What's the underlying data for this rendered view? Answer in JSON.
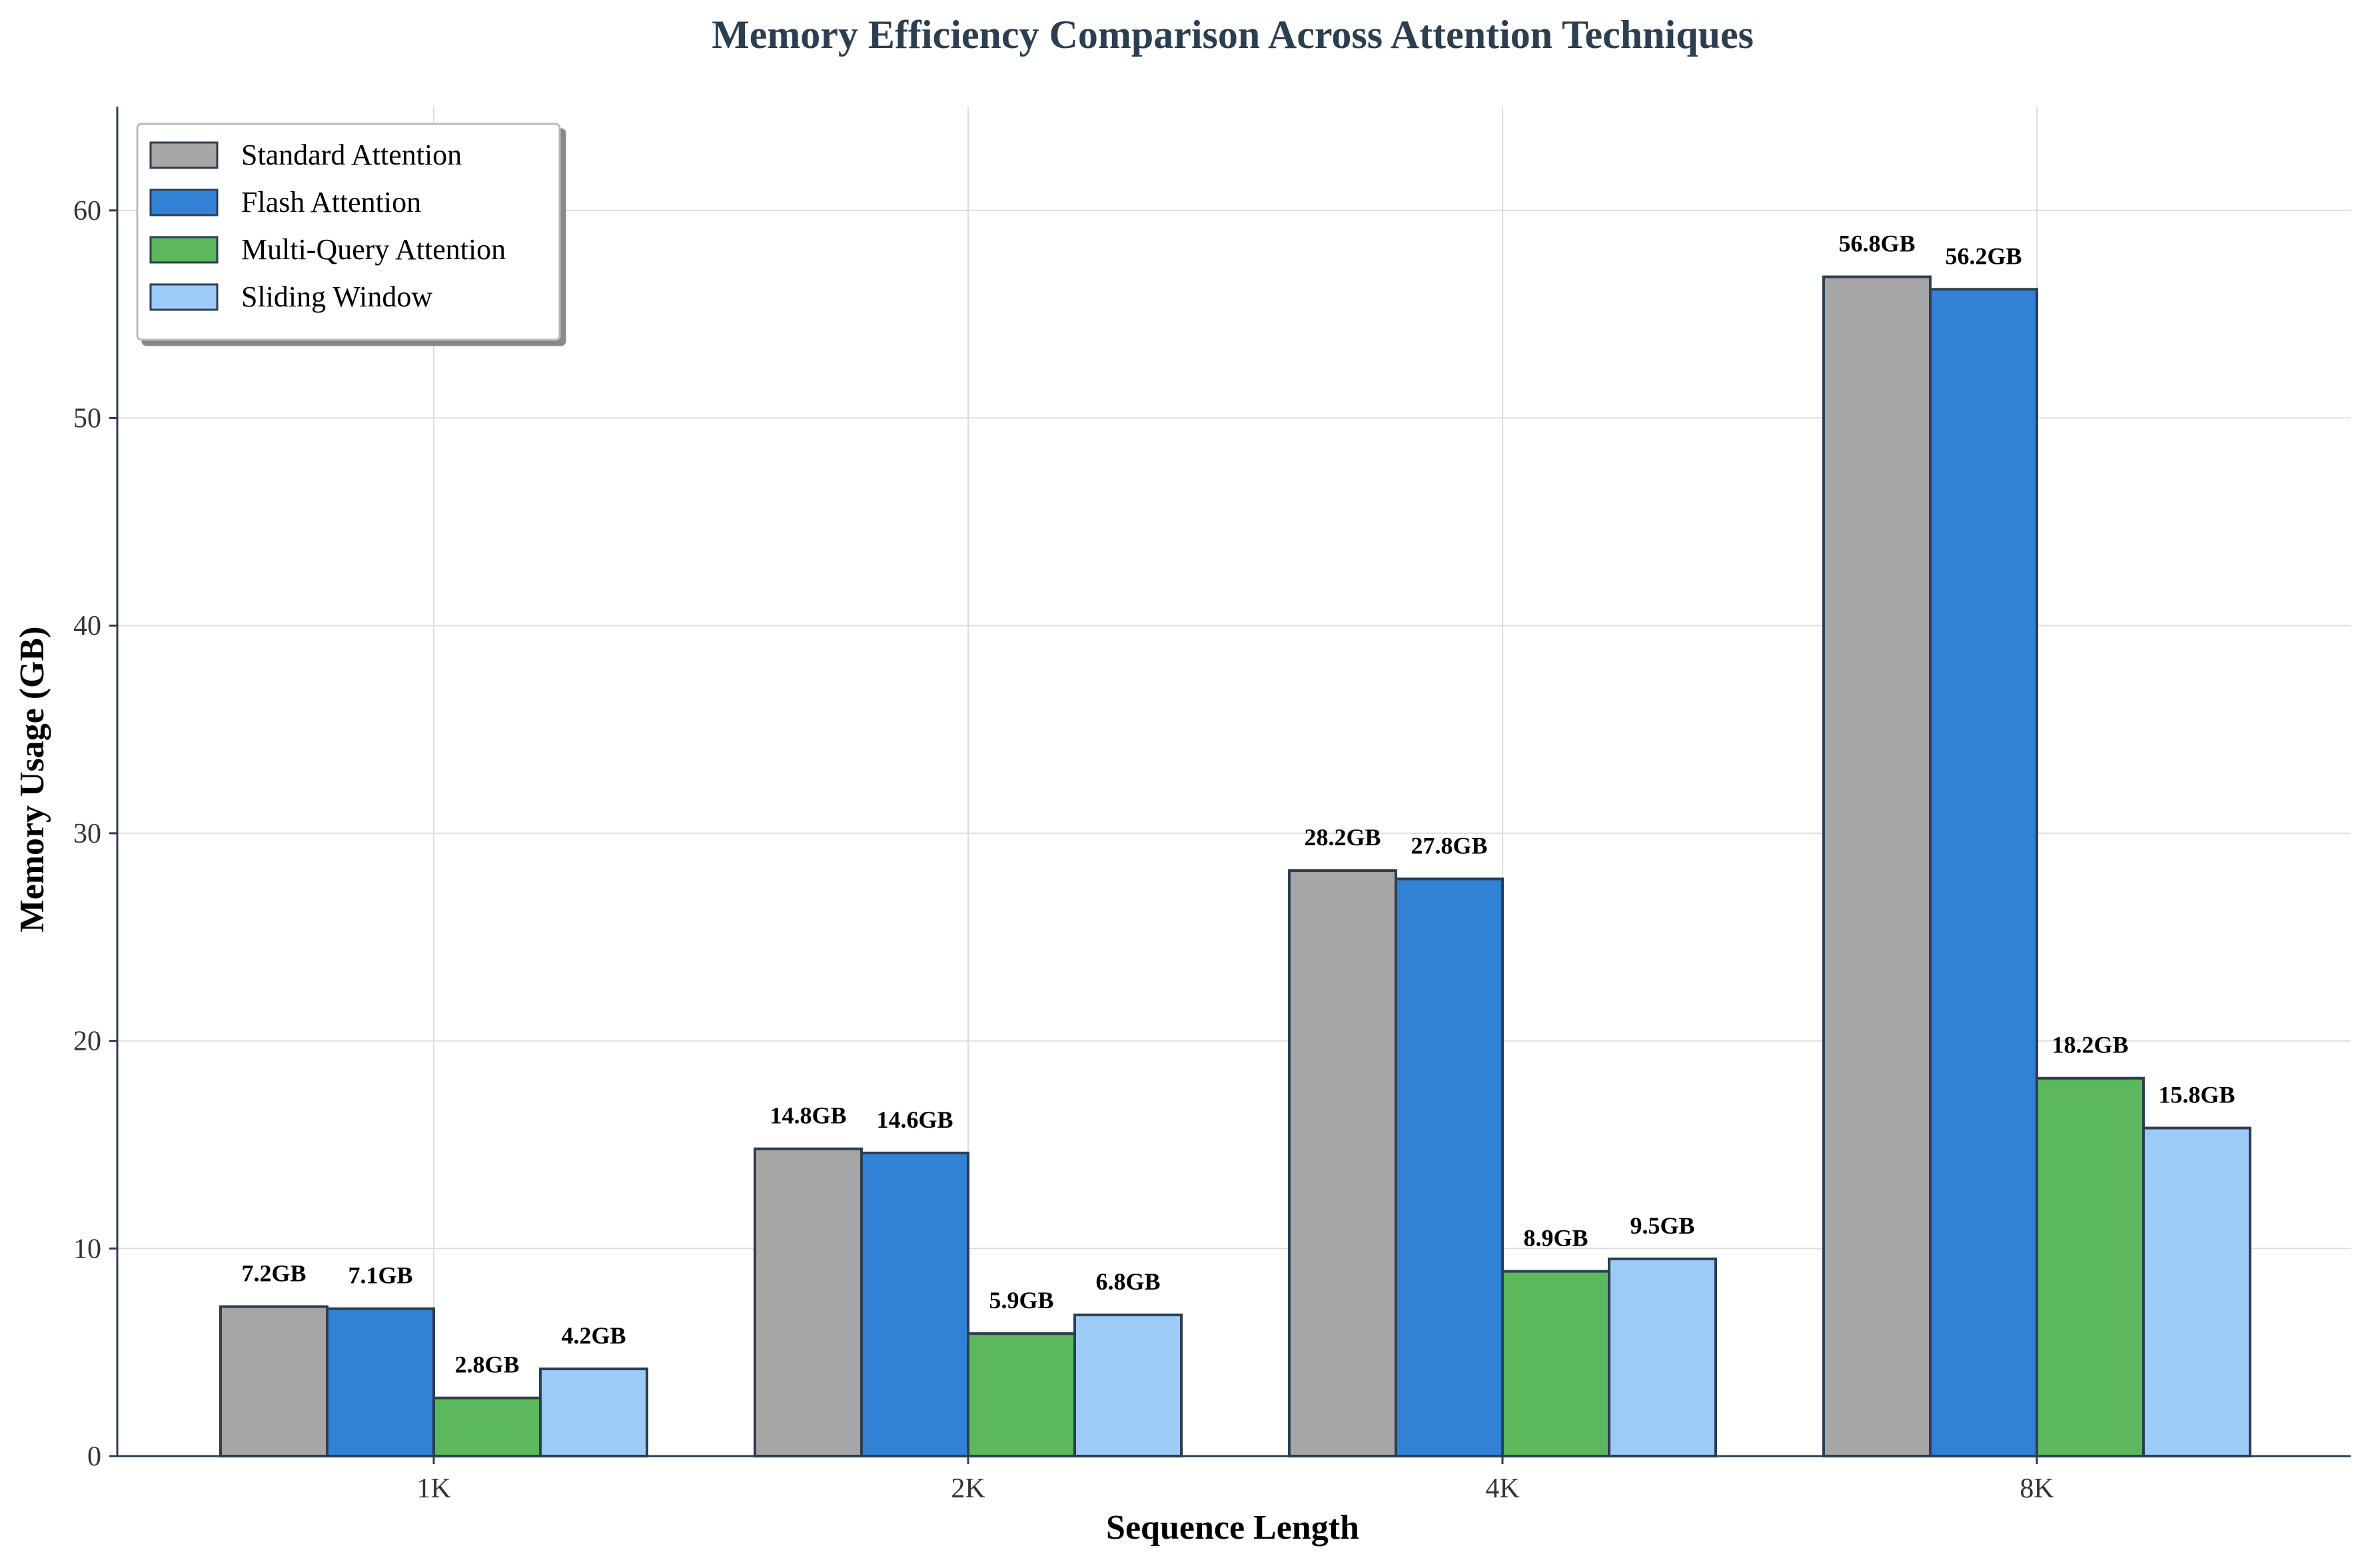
{
  "chart_data": {
    "type": "bar",
    "title": "Memory Efficiency Comparison Across Attention Techniques",
    "xlabel": "Sequence Length",
    "ylabel": "Memory Usage (GB)",
    "categories": [
      "1K",
      "2K",
      "4K",
      "8K"
    ],
    "ylim": [
      0,
      65
    ],
    "yticks": [
      0,
      10,
      20,
      30,
      40,
      50,
      60
    ],
    "grid": true,
    "legend_position": "top-left",
    "value_suffix": "GB",
    "series": [
      {
        "name": "Standard Attention",
        "color": "#a6a6a6",
        "values": [
          7.2,
          14.8,
          28.2,
          56.8
        ]
      },
      {
        "name": "Flash Attention",
        "color": "#3182d6",
        "values": [
          7.1,
          14.6,
          27.8,
          56.2
        ]
      },
      {
        "name": "Multi-Query Attention",
        "color": "#5cb85c",
        "values": [
          2.8,
          5.9,
          8.9,
          18.2
        ]
      },
      {
        "name": "Sliding Window",
        "color": "#9dcbf7",
        "values": [
          4.2,
          6.8,
          9.5,
          15.8
        ]
      }
    ]
  }
}
